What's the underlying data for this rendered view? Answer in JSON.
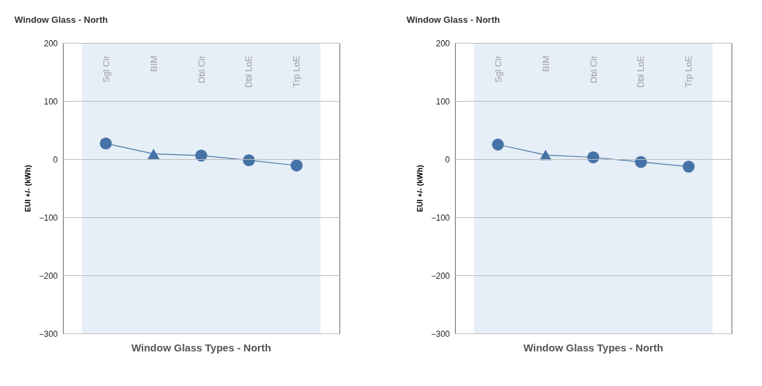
{
  "chart_data": [
    {
      "type": "line",
      "title": "Window Glass - North",
      "xlabel": "Window Glass Types - North",
      "ylabel": "EUI +/- (kWh)",
      "categories": [
        "Sgl Clr",
        "BIM",
        "Dbl Clr",
        "Dbl LoE",
        "Trp LoE"
      ],
      "ylim": [
        -300,
        200
      ],
      "yticks": [
        -300,
        -200,
        -100,
        0,
        100,
        200
      ],
      "grid": "y",
      "bands": [
        {
          "axis": "x",
          "from": "Sgl Clr",
          "to": "Trp LoE",
          "color": "#e6eef7"
        }
      ],
      "series": [
        {
          "color": "#4573a7",
          "marker": "none",
          "values": [
            27,
            9,
            6,
            -2,
            -11
          ]
        },
        {
          "type": "scatter",
          "color": "#4573a7",
          "marker": "circle",
          "values": [
            27,
            null,
            6,
            -2,
            -11
          ]
        },
        {
          "type": "scatter",
          "color": "#4573a7",
          "marker": "triangle",
          "values": [
            null,
            9,
            null,
            null,
            null
          ]
        }
      ]
    },
    {
      "type": "line",
      "title": "Window Glass - North",
      "xlabel": "Window Glass Types - North",
      "ylabel": "EUI +/- (kWh)",
      "categories": [
        "Sgl Clr",
        "BIM",
        "Dbl Clr",
        "Dbl LoE",
        "Trp LoE"
      ],
      "ylim": [
        -300,
        200
      ],
      "yticks": [
        -300,
        -200,
        -100,
        0,
        100,
        200
      ],
      "grid": "y",
      "bands": [
        {
          "axis": "x",
          "from": "Sgl Clr",
          "to": "Trp LoE",
          "color": "#e6eef7"
        }
      ],
      "series": [
        {
          "color": "#4573a7",
          "marker": "none",
          "values": [
            25,
            7,
            3,
            -5,
            -13
          ]
        },
        {
          "type": "scatter",
          "color": "#4573a7",
          "marker": "circle",
          "values": [
            25,
            null,
            3,
            -5,
            -13
          ]
        },
        {
          "type": "scatter",
          "color": "#4573a7",
          "marker": "triangle",
          "values": [
            null,
            7,
            null,
            null,
            null
          ]
        }
      ]
    }
  ]
}
